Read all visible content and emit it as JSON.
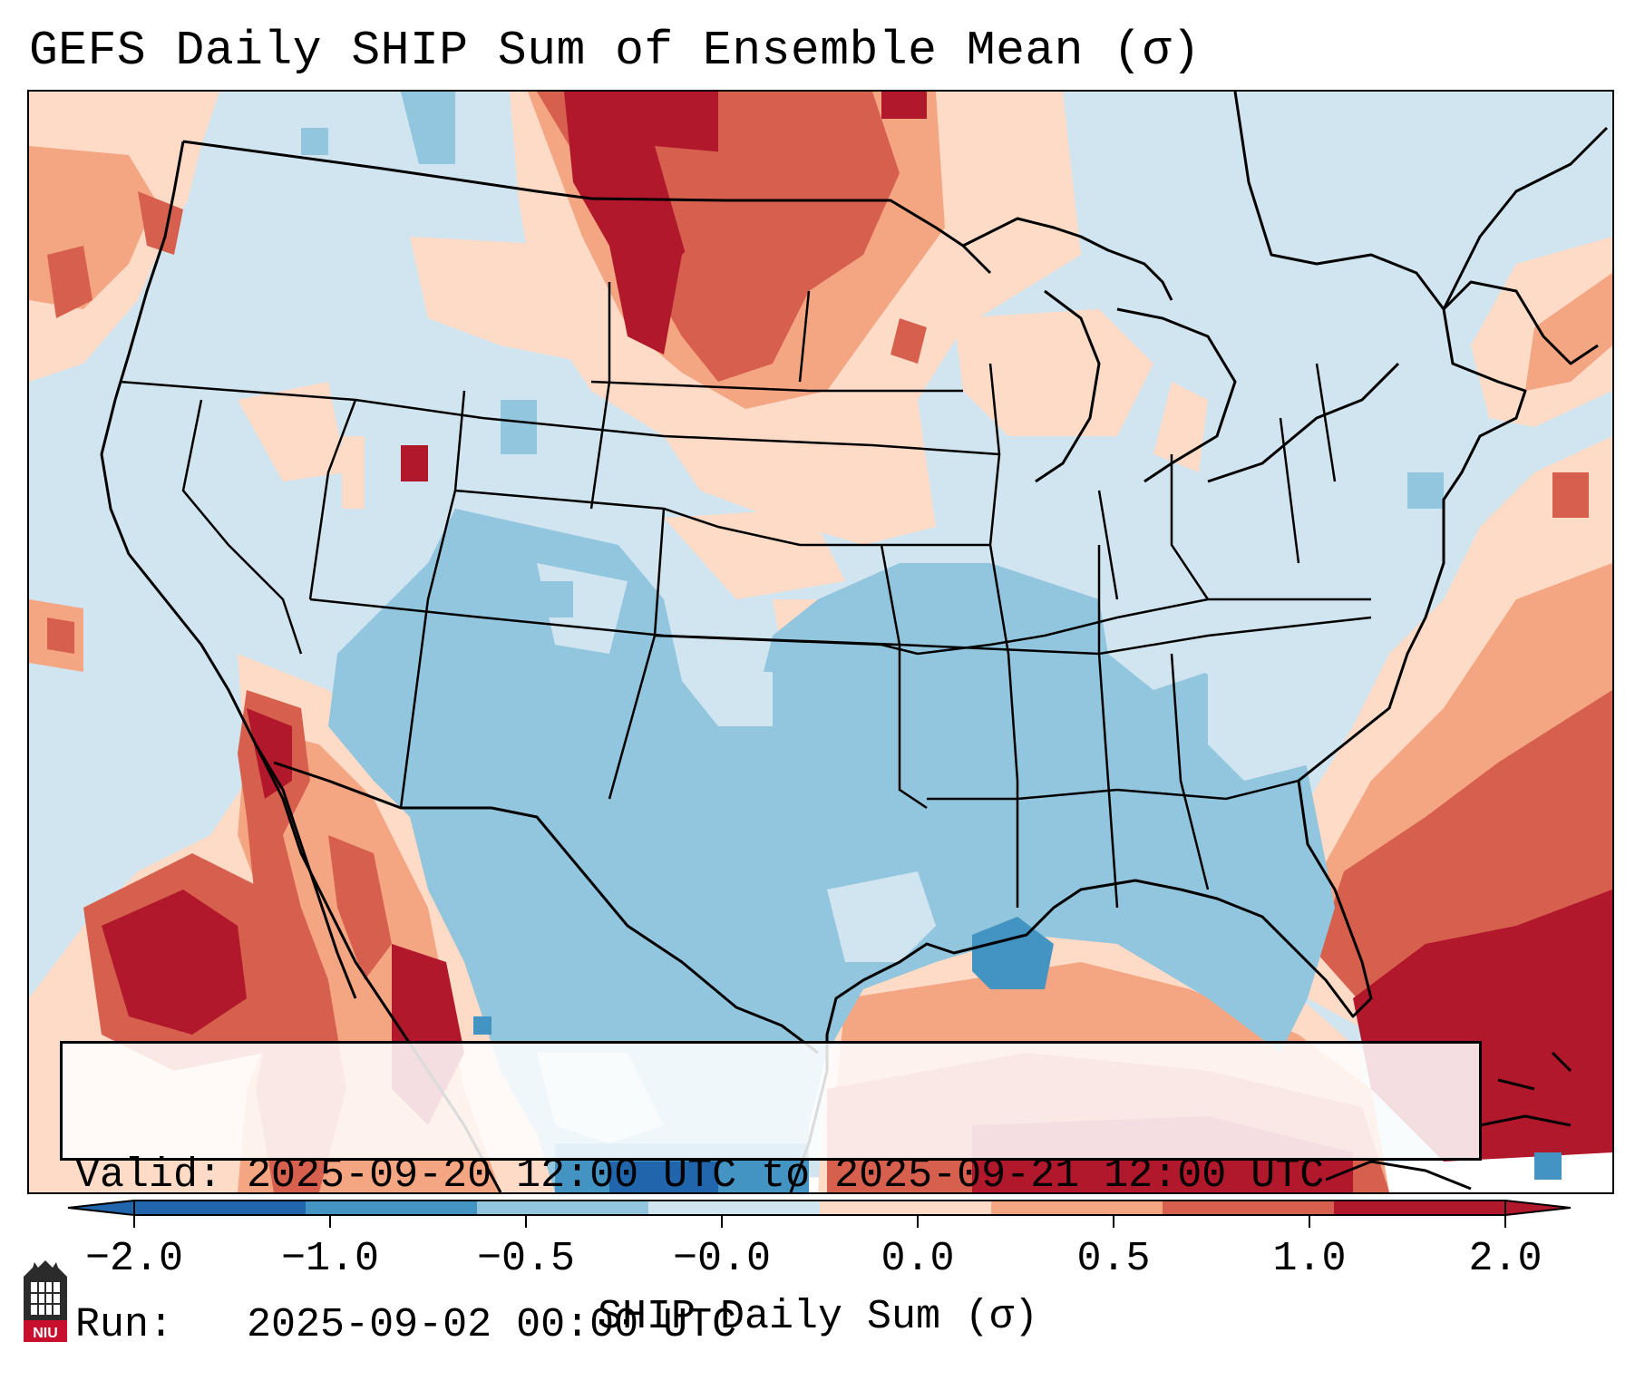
{
  "title": "GEFS Daily SHIP Sum of Ensemble Mean (σ)",
  "info": {
    "valid_label": "Valid:",
    "valid_value": "2025-09-20 12:00 UTC to 2025-09-21 12:00 UTC",
    "run_label": "Run:",
    "run_value": "2025-09-02 00:00 UTC"
  },
  "colorbar": {
    "label": "SHIP Daily Sum (σ)",
    "ticks": [
      "−2.0",
      "−1.0",
      "−0.5",
      "−0.0",
      "0.0",
      "0.5",
      "1.0",
      "2.0"
    ],
    "colors": [
      "#2166ac",
      "#4393c3",
      "#92c5de",
      "#d1e5f0",
      "#fddbc7",
      "#f4a582",
      "#d6604d",
      "#b2182b"
    ],
    "under_color": "#2166ac",
    "over_color": "#b2182b"
  },
  "logo": {
    "text": "NIU",
    "icon": "niu-logo-icon"
  }
}
